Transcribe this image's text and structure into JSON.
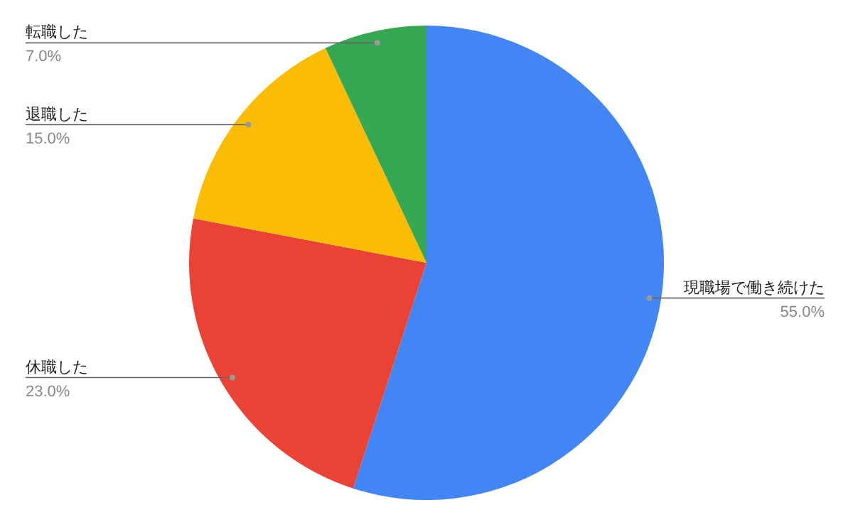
{
  "chart_data": {
    "type": "pie",
    "categories": [
      "現職場で働き続けた",
      "休職した",
      "退職した",
      "転職した"
    ],
    "values": [
      55,
      23,
      15,
      7
    ],
    "colors": [
      "#4285f4",
      "#ea4335",
      "#fbbc04",
      "#34a853"
    ],
    "value_labels": [
      "55.0%",
      "23.0%",
      "15.0%",
      "7.0%"
    ]
  }
}
